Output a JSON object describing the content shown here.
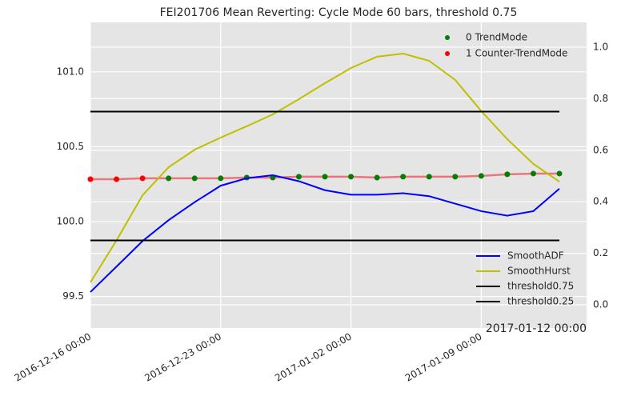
{
  "chart_data": {
    "type": "line",
    "title": "FEI201706 Mean Reverting: Cycle Mode 60 bars, threshold 0.75",
    "categories": [
      "2016-12-16 00:00",
      null,
      null,
      null,
      null,
      "2016-12-23 00:00",
      null,
      null,
      null,
      null,
      "2017-01-02 00:00",
      null,
      null,
      null,
      null,
      "2017-01-09 00:00",
      null,
      null,
      null
    ],
    "x_offset_label": "2017-01-12 00:00",
    "ylim": [
      99.29,
      101.33
    ],
    "yticks": [
      99.5,
      100.0,
      100.5,
      101.0
    ],
    "y2lim": [
      -0.09,
      1.096
    ],
    "y2ticks": [
      0.0,
      0.2,
      0.4,
      0.6,
      0.8,
      1.0
    ],
    "grid": true,
    "price": {
      "color": "#e8767a",
      "values": [
        100.283,
        100.283,
        100.289,
        100.289,
        100.289,
        100.289,
        100.294,
        100.294,
        100.3,
        100.3,
        100.3,
        100.294,
        100.3,
        100.3,
        100.3,
        100.305,
        100.316,
        100.321,
        100.321
      ]
    },
    "scatter_legend": "upper right",
    "scatter": [
      {
        "name": "0 TrendMode",
        "color": "#007f00",
        "values": [
          null,
          null,
          null,
          100.289,
          100.289,
          100.289,
          100.294,
          100.294,
          100.3,
          100.3,
          100.3,
          100.294,
          100.3,
          100.3,
          100.3,
          100.305,
          100.316,
          100.321,
          100.321
        ]
      },
      {
        "name": "1 Counter-TrendMode",
        "color": "#ff0000",
        "values": [
          100.283,
          100.283,
          100.289,
          null,
          null,
          null,
          null,
          null,
          null,
          null,
          null,
          null,
          null,
          null,
          null,
          null,
          null,
          null,
          null
        ]
      }
    ],
    "line_legend": "lower right",
    "series": [
      {
        "name": "SmoothADF",
        "color": "#0000ff",
        "values": [
          99.53,
          99.7,
          99.87,
          100.01,
          100.13,
          100.24,
          100.29,
          100.31,
          100.27,
          100.21,
          100.18,
          100.18,
          100.19,
          100.17,
          100.12,
          100.07,
          100.04,
          100.07,
          100.22
        ]
      },
      {
        "name": "SmoothHurst",
        "color": "#bfbf00",
        "axis": "y2",
        "values": [
          0.087,
          0.25,
          0.425,
          0.534,
          0.602,
          0.649,
          0.693,
          0.739,
          0.798,
          0.86,
          0.919,
          0.963,
          0.975,
          0.947,
          0.873,
          0.752,
          0.643,
          0.547,
          0.478
        ]
      }
    ],
    "hlines": [
      {
        "name": "threshold0.75",
        "color": "#000000",
        "axis": "y2",
        "value": 0.75
      },
      {
        "name": "threshold0.25",
        "color": "#000000",
        "axis": "y2",
        "value": 0.25
      }
    ]
  }
}
